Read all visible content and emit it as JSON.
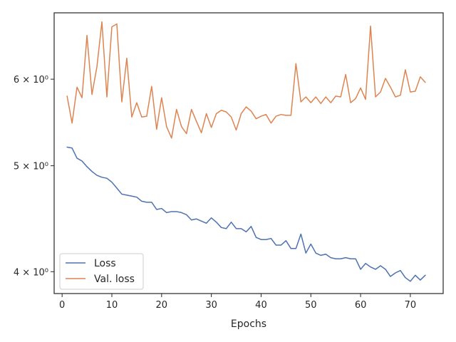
{
  "chart_data": {
    "type": "line",
    "xlabel": "Epochs",
    "ylabel": "",
    "y_scale": "log",
    "xlim": [
      -1.6,
      76.6
    ],
    "ylim": [
      3.82,
      6.9
    ],
    "x_ticks": [
      0,
      10,
      20,
      30,
      40,
      50,
      60,
      70
    ],
    "y_ticks": [
      {
        "value": 4,
        "label": "4 × 10⁰"
      },
      {
        "value": 5,
        "label": "5 × 10⁰"
      },
      {
        "value": 6,
        "label": "6 × 10⁰"
      }
    ],
    "grid": false,
    "legend_position": "lower-left",
    "x": [
      1,
      2,
      3,
      4,
      5,
      6,
      7,
      8,
      9,
      10,
      11,
      12,
      13,
      14,
      15,
      16,
      17,
      18,
      19,
      20,
      21,
      22,
      23,
      24,
      25,
      26,
      27,
      28,
      29,
      30,
      31,
      32,
      33,
      34,
      35,
      36,
      37,
      38,
      39,
      40,
      41,
      42,
      43,
      44,
      45,
      46,
      47,
      48,
      49,
      50,
      51,
      52,
      53,
      54,
      55,
      56,
      57,
      58,
      59,
      60,
      61,
      62,
      63,
      64,
      65,
      66,
      67,
      68,
      69,
      70,
      71,
      72,
      73
    ],
    "series": [
      {
        "name": "Loss",
        "color": "#4c72b0",
        "values": [
          5.2,
          5.19,
          5.08,
          5.05,
          4.99,
          4.94,
          4.9,
          4.88,
          4.87,
          4.83,
          4.77,
          4.71,
          4.7,
          4.69,
          4.68,
          4.64,
          4.63,
          4.63,
          4.56,
          4.57,
          4.53,
          4.54,
          4.54,
          4.53,
          4.51,
          4.46,
          4.47,
          4.45,
          4.43,
          4.48,
          4.44,
          4.39,
          4.38,
          4.44,
          4.38,
          4.38,
          4.35,
          4.4,
          4.3,
          4.28,
          4.28,
          4.29,
          4.23,
          4.23,
          4.27,
          4.2,
          4.2,
          4.33,
          4.16,
          4.24,
          4.16,
          4.14,
          4.15,
          4.12,
          4.11,
          4.11,
          4.12,
          4.11,
          4.11,
          4.02,
          4.07,
          4.04,
          4.02,
          4.05,
          4.02,
          3.96,
          3.99,
          4.01,
          3.95,
          3.92,
          3.97,
          3.93,
          3.97
        ]
      },
      {
        "name": "Val. loss",
        "color": "#dd8452",
        "values": [
          5.79,
          5.47,
          5.9,
          5.77,
          6.58,
          5.81,
          6.16,
          6.77,
          5.78,
          6.7,
          6.74,
          5.72,
          6.27,
          5.54,
          5.71,
          5.54,
          5.55,
          5.91,
          5.4,
          5.77,
          5.43,
          5.3,
          5.63,
          5.43,
          5.35,
          5.63,
          5.49,
          5.36,
          5.58,
          5.42,
          5.58,
          5.62,
          5.6,
          5.54,
          5.39,
          5.58,
          5.66,
          5.61,
          5.52,
          5.55,
          5.57,
          5.47,
          5.55,
          5.57,
          5.56,
          5.56,
          6.2,
          5.72,
          5.78,
          5.71,
          5.78,
          5.7,
          5.78,
          5.71,
          5.79,
          5.78,
          6.06,
          5.71,
          5.76,
          5.89,
          5.75,
          6.71,
          5.78,
          5.84,
          6.01,
          5.9,
          5.78,
          5.8,
          6.12,
          5.84,
          5.85,
          6.03,
          5.96
        ]
      }
    ]
  }
}
